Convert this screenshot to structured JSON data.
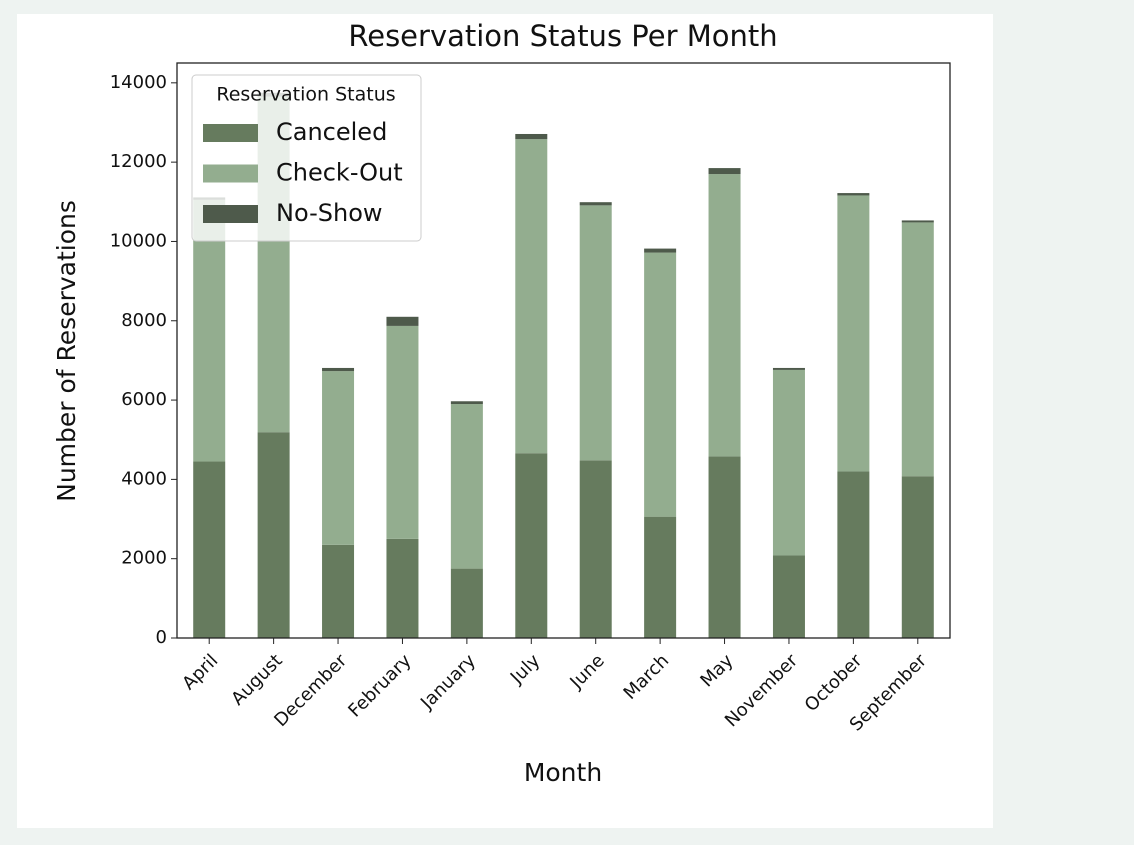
{
  "chart_data": {
    "type": "stacked_bar",
    "title": "Reservation Status Per Month",
    "x_label": "Month",
    "y_label": "Number of Reservations",
    "legend_title": "Reservation Status",
    "legend_position": "upper left",
    "categories": [
      "April",
      "August",
      "December",
      "February",
      "January",
      "July",
      "June",
      "March",
      "May",
      "November",
      "October",
      "September"
    ],
    "series": [
      {
        "name": "Canceled",
        "color": "#667b5e",
        "values": [
          4450,
          5190,
          2350,
          2500,
          1750,
          4660,
          4480,
          3060,
          4580,
          2080,
          4200,
          4080
        ]
      },
      {
        "name": "Check-Out",
        "color": "#93ad8f",
        "values": [
          6600,
          8460,
          4380,
          5370,
          4150,
          7920,
          6430,
          6660,
          7120,
          4680,
          6960,
          6400
        ]
      },
      {
        "name": "No-Show",
        "color": "#4e5a4b",
        "values": [
          60,
          100,
          80,
          230,
          70,
          130,
          80,
          100,
          150,
          50,
          60,
          50
        ]
      }
    ],
    "ylim": [
      0,
      14500
    ],
    "yticks": [
      0,
      2000,
      4000,
      6000,
      8000,
      10000,
      12000,
      14000
    ],
    "grid": false
  }
}
